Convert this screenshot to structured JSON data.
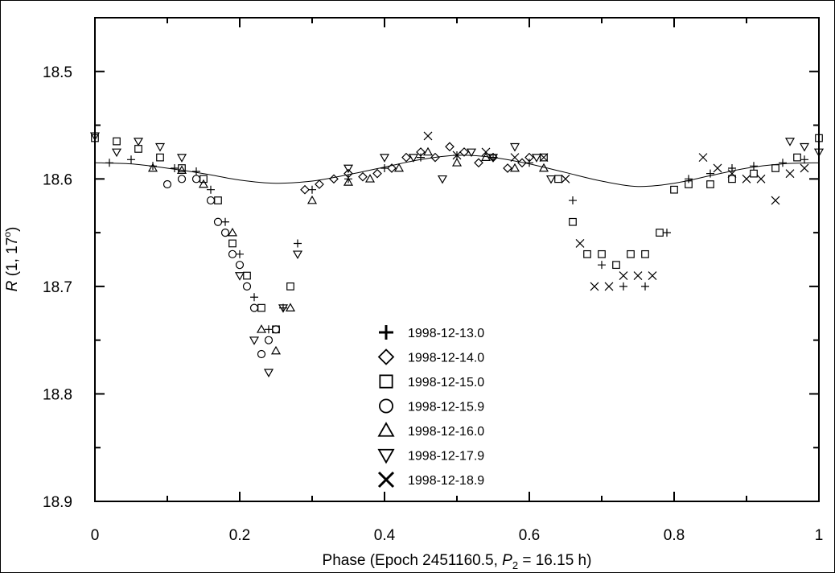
{
  "chart_data": {
    "type": "scatter",
    "xlabel": {
      "prefix": "Phase (Epoch 2451160.5, ",
      "var": "P",
      "sub": "2",
      "suffix": " = 16.15 h)"
    },
    "ylabel": {
      "var": "R",
      "rest": " (1, 17",
      "sup": "o",
      "close": ")"
    },
    "xlim": [
      0,
      1
    ],
    "ylim": [
      18.9,
      18.45
    ],
    "y_inverted": true,
    "x_ticks": [
      0,
      0.2,
      0.4,
      0.6,
      0.8,
      1
    ],
    "x_tick_labels": [
      "0",
      "0.2",
      "0.4",
      "0.6",
      "0.8",
      "1"
    ],
    "y_ticks": [
      18.5,
      18.6,
      18.7,
      18.8,
      18.9
    ],
    "y_tick_labels": [
      "18.5",
      "18.6",
      "18.7",
      "18.8",
      "18.9"
    ],
    "legend_position": "center-bottom",
    "grid": false,
    "model_curve": {
      "x": [
        0.0,
        0.05,
        0.1,
        0.15,
        0.2,
        0.25,
        0.3,
        0.35,
        0.4,
        0.45,
        0.5,
        0.55,
        0.6,
        0.65,
        0.7,
        0.75,
        0.8,
        0.85,
        0.9,
        0.95,
        1.0
      ],
      "y": [
        18.585,
        18.586,
        18.59,
        18.595,
        18.601,
        18.604,
        18.602,
        18.596,
        18.589,
        18.582,
        18.578,
        18.58,
        18.586,
        18.594,
        18.602,
        18.607,
        18.604,
        18.597,
        18.59,
        18.586,
        18.585
      ]
    },
    "series": [
      {
        "name": "1998-12-13.0",
        "marker": "plus",
        "x": [
          0.02,
          0.05,
          0.08,
          0.11,
          0.14,
          0.16,
          0.18,
          0.2,
          0.22,
          0.24,
          0.26,
          0.28,
          0.3,
          0.35,
          0.4,
          0.45,
          0.5,
          0.55,
          0.6,
          0.66,
          0.7,
          0.73,
          0.76,
          0.79,
          0.82,
          0.85,
          0.88,
          0.91,
          0.95,
          0.98
        ],
        "y": [
          18.585,
          18.582,
          18.588,
          18.59,
          18.593,
          18.61,
          18.64,
          18.67,
          18.71,
          18.74,
          18.72,
          18.66,
          18.61,
          18.6,
          18.59,
          18.58,
          18.578,
          18.58,
          18.585,
          18.62,
          18.68,
          18.7,
          18.7,
          18.65,
          18.6,
          18.595,
          18.59,
          18.588,
          18.585,
          18.582
        ]
      },
      {
        "name": "1998-12-14.0",
        "marker": "diamond",
        "x": [
          0.29,
          0.31,
          0.33,
          0.35,
          0.37,
          0.39,
          0.41,
          0.43,
          0.45,
          0.47,
          0.49,
          0.51,
          0.53,
          0.55,
          0.57,
          0.59,
          0.6
        ],
        "y": [
          18.61,
          18.605,
          18.6,
          18.595,
          18.598,
          18.595,
          18.59,
          18.58,
          18.575,
          18.58,
          18.57,
          18.575,
          18.585,
          18.58,
          18.59,
          18.585,
          18.58
        ]
      },
      {
        "name": "1998-12-15.0",
        "marker": "square",
        "x": [
          0.0,
          0.03,
          0.06,
          0.09,
          0.12,
          0.15,
          0.17,
          0.19,
          0.21,
          0.23,
          0.25,
          0.27,
          0.62,
          0.64,
          0.66,
          0.68,
          0.7,
          0.72,
          0.74,
          0.76,
          0.78,
          0.8,
          0.82,
          0.85,
          0.88,
          0.91,
          0.94,
          0.97,
          1.0
        ],
        "y": [
          18.562,
          18.565,
          18.572,
          18.58,
          18.59,
          18.6,
          18.62,
          18.66,
          18.69,
          18.72,
          18.74,
          18.7,
          18.58,
          18.6,
          18.64,
          18.67,
          18.67,
          18.68,
          18.67,
          18.67,
          18.65,
          18.61,
          18.605,
          18.605,
          18.6,
          18.595,
          18.59,
          18.58,
          18.562
        ]
      },
      {
        "name": "1998-12-15.9",
        "marker": "circle",
        "x": [
          0.1,
          0.12,
          0.14,
          0.16,
          0.17,
          0.18,
          0.19,
          0.2,
          0.21,
          0.22,
          0.23,
          0.24,
          0.25
        ],
        "y": [
          18.605,
          18.6,
          18.6,
          18.62,
          18.64,
          18.65,
          18.67,
          18.68,
          18.7,
          18.72,
          18.763,
          18.75,
          18.74
        ]
      },
      {
        "name": "1998-12-16.0",
        "marker": "triangle-up",
        "x": [
          0.08,
          0.12,
          0.15,
          0.19,
          0.23,
          0.25,
          0.27,
          0.3,
          0.35,
          0.38,
          0.42,
          0.46,
          0.5,
          0.54,
          0.58,
          0.62
        ],
        "y": [
          18.59,
          18.592,
          18.605,
          18.65,
          18.74,
          18.76,
          18.72,
          18.62,
          18.603,
          18.6,
          18.59,
          18.575,
          18.585,
          18.58,
          18.59,
          18.59
        ]
      },
      {
        "name": "1998-12-17.9",
        "marker": "triangle-down",
        "x": [
          0.0,
          0.03,
          0.06,
          0.09,
          0.12,
          0.2,
          0.22,
          0.24,
          0.26,
          0.28,
          0.35,
          0.4,
          0.44,
          0.48,
          0.52,
          0.55,
          0.58,
          0.61,
          0.63,
          0.96,
          0.98,
          1.0
        ],
        "y": [
          18.56,
          18.575,
          18.565,
          18.57,
          18.58,
          18.69,
          18.75,
          18.78,
          18.72,
          18.67,
          18.59,
          18.58,
          18.58,
          18.6,
          18.575,
          18.58,
          18.57,
          18.58,
          18.6,
          18.565,
          18.57,
          18.575
        ]
      },
      {
        "name": "1998-12-18.9",
        "marker": "cross",
        "x": [
          0.46,
          0.5,
          0.54,
          0.58,
          0.62,
          0.65,
          0.67,
          0.69,
          0.71,
          0.73,
          0.75,
          0.77,
          0.84,
          0.86,
          0.88,
          0.9,
          0.92,
          0.94,
          0.96,
          0.98
        ],
        "y": [
          18.56,
          18.578,
          18.575,
          18.58,
          18.58,
          18.6,
          18.66,
          18.7,
          18.7,
          18.69,
          18.69,
          18.69,
          18.58,
          18.59,
          18.595,
          18.6,
          18.6,
          18.62,
          18.595,
          18.59
        ]
      }
    ]
  }
}
